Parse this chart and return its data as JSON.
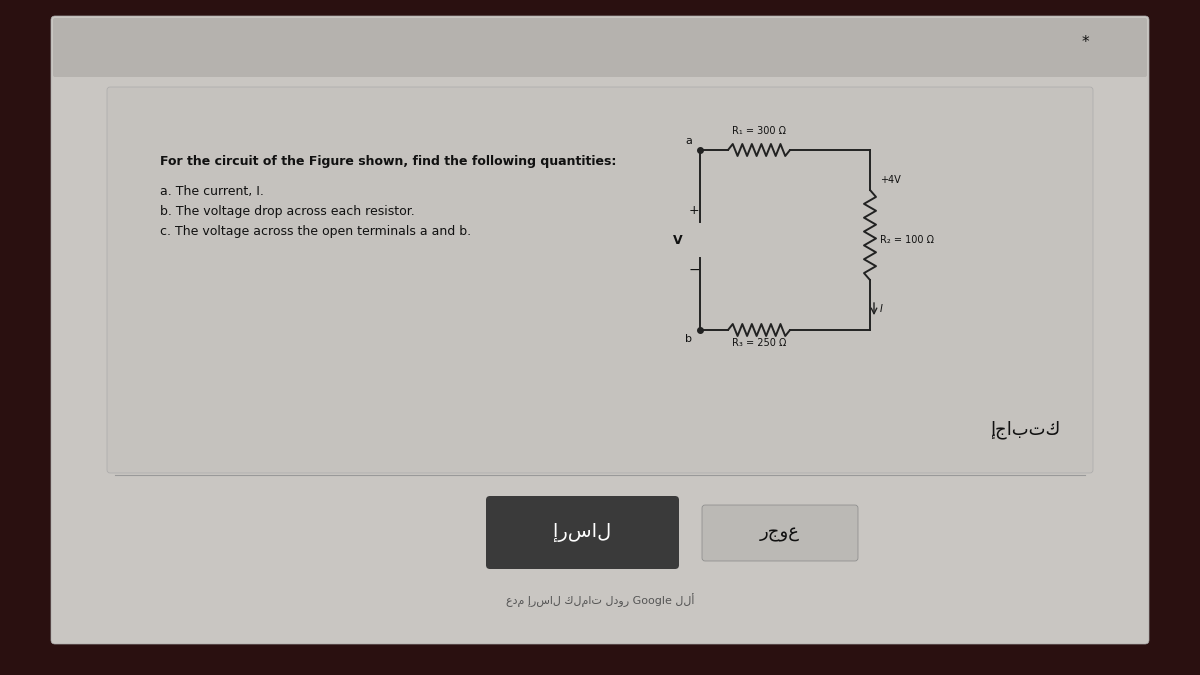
{
  "bg_outer": "#2a1010",
  "bg_card": "#c8c5c0",
  "title_text": "For the circuit of the Figure shown, find the following quantities:",
  "items": [
    "a. The current, I.",
    "b. The voltage drop across each resistor.",
    "c. The voltage across the open terminals a and b."
  ],
  "R1_label": "R₁ = 300 Ω",
  "R2_label": "R₂ = 100 Ω",
  "R3_label": "R₃ = 250 Ω",
  "V_source_label": "+4V",
  "terminal_a": "a",
  "terminal_b": "b",
  "arabic_answer": "إجابتك",
  "send_btn": "إرسال",
  "back_btn": "رجوع",
  "footer_arabic": "عدم إرسال كلمات لدور",
  "footer_google": "Google",
  "footer_end": "للأ",
  "asterisk": "*",
  "text_color": "#111111",
  "wire_color": "#222222",
  "card_bg": "#c9c6c2",
  "inner_bg": "#c5c2be",
  "send_bg": "#3a3a3a",
  "back_bg": "#bbb9b5"
}
